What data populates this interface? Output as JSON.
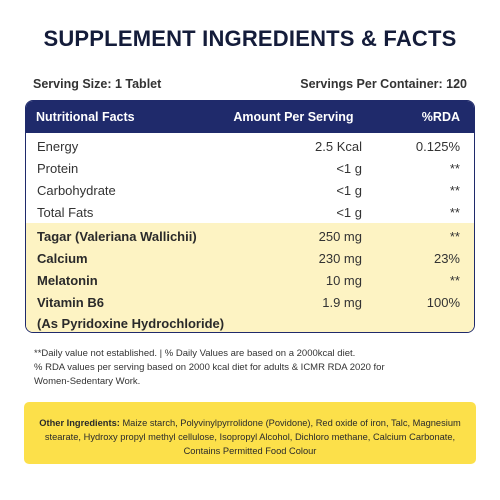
{
  "title": "SUPPLEMENT INGREDIENTS & FACTS",
  "serving_size": "Serving Size: 1 Tablet",
  "servings_per_container": "Servings Per Container: 120",
  "table": {
    "headers": [
      "Nutritional Facts",
      "Amount Per Serving",
      "%RDA"
    ],
    "basic_rows": [
      {
        "name": "Energy",
        "amount": "2.5 Kcal",
        "rda": "0.125%"
      },
      {
        "name": "Protein",
        "amount": "<1 g",
        "rda": "**"
      },
      {
        "name": "Carbohydrate",
        "amount": "<1 g",
        "rda": "**"
      },
      {
        "name": "Total Fats",
        "amount": "<1 g",
        "rda": "**"
      }
    ],
    "active_rows": [
      {
        "name": "Tagar (Valeriana Wallichii)",
        "amount": "250 mg",
        "rda": "**"
      },
      {
        "name": "Calcium",
        "amount": "230 mg",
        "rda": "23%"
      },
      {
        "name": "Melatonin",
        "amount": "10 mg",
        "rda": "**"
      },
      {
        "name": "Vitamin B6",
        "amount": "1.9 mg",
        "rda": "100%"
      }
    ],
    "active_sub": "(As Pyridoxine Hydrochloride)"
  },
  "notes": {
    "line1": "**Daily value not established. | % Daily Values are based on a 2000kcal diet.",
    "line2": "% RDA values per serving based on 2000 kcal diet for adults & ICMR RDA 2020 for",
    "line3": "Women-Sedentary Work."
  },
  "other_ingredients": {
    "label": "Other Ingredients:",
    "text": " Maize starch, Polyvinylpyrrolidone (Povidone), Red oxide of iron, Talc, Magnesium stearate, Hydroxy propyl methyl cellulose, Isopropyl Alcohol, Dichloro methane, Calcium Carbonate, Contains Permitted Food Colour"
  },
  "colors": {
    "header_navy": "#1f2a6b",
    "active_highlight": "#fdf3c3",
    "other_box_yellow": "#fce04a"
  }
}
